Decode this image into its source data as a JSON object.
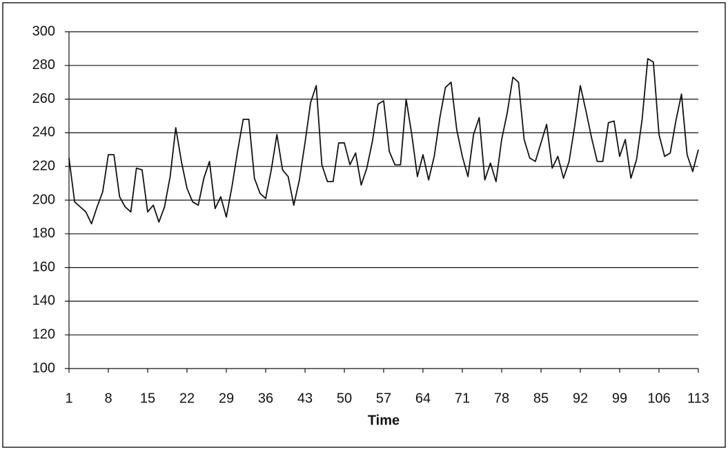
{
  "chart_data": {
    "type": "line",
    "x_label": "Time",
    "x": [
      1,
      2,
      3,
      4,
      5,
      6,
      7,
      8,
      9,
      10,
      11,
      12,
      13,
      14,
      15,
      16,
      17,
      18,
      19,
      20,
      21,
      22,
      23,
      24,
      25,
      26,
      27,
      28,
      29,
      30,
      31,
      32,
      33,
      34,
      35,
      36,
      37,
      38,
      39,
      40,
      41,
      42,
      43,
      44,
      45,
      46,
      47,
      48,
      49,
      50,
      51,
      52,
      53,
      54,
      55,
      56,
      57,
      58,
      59,
      60,
      61,
      62,
      63,
      64,
      65,
      66,
      67,
      68,
      69,
      70,
      71,
      72,
      73,
      74,
      75,
      76,
      77,
      78,
      79,
      80,
      81,
      82,
      83,
      84,
      85,
      86,
      87,
      88,
      89,
      90,
      91,
      92,
      93,
      94,
      95,
      96,
      97,
      98,
      99,
      100,
      101,
      102,
      103,
      104,
      105,
      106,
      107,
      108,
      109,
      110,
      111,
      112,
      113
    ],
    "series": [
      {
        "color": "#111111",
        "values": [
          225,
          199,
          196,
          193,
          186,
          196,
          205,
          227,
          227,
          202,
          196,
          193,
          219,
          218,
          193,
          197,
          187,
          196,
          214,
          243,
          223,
          207,
          199,
          197,
          213,
          223,
          195,
          202,
          190,
          208,
          229,
          248,
          248,
          213,
          204,
          201,
          218,
          239,
          218,
          214,
          197,
          212,
          234,
          258,
          268,
          221,
          211,
          211,
          234,
          234,
          221,
          228,
          209,
          219,
          235,
          257,
          259,
          229,
          221,
          221,
          260,
          239,
          214,
          227,
          212,
          226,
          249,
          267,
          270,
          242,
          226,
          214,
          239,
          249,
          212,
          222,
          211,
          236,
          252,
          273,
          270,
          236,
          225,
          223,
          234,
          245,
          219,
          226,
          213,
          223,
          244,
          268,
          253,
          237,
          223,
          223,
          246,
          247,
          226,
          236,
          213,
          224,
          248,
          284,
          282,
          239,
          226,
          228,
          247,
          263,
          227,
          217,
          230
        ]
      }
    ],
    "xlim": [
      1,
      113
    ],
    "xticks": [
      1,
      8,
      15,
      22,
      29,
      36,
      43,
      50,
      57,
      64,
      71,
      78,
      85,
      92,
      99,
      106,
      113
    ],
    "ylim": [
      100,
      300
    ],
    "yticks": [
      100,
      120,
      140,
      160,
      180,
      200,
      220,
      240,
      260,
      280,
      300
    ],
    "grid": true
  }
}
